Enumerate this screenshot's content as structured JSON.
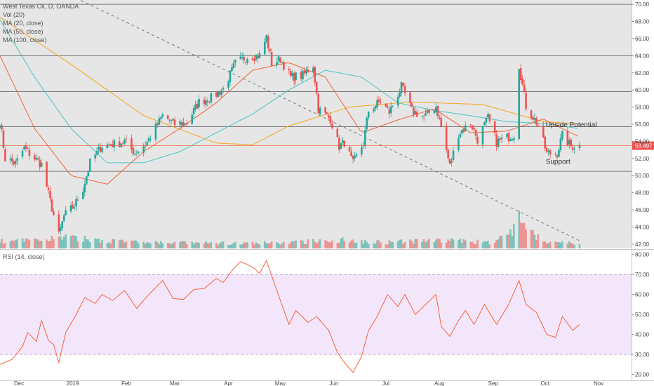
{
  "legend": {
    "symbol": "West Texas Oil, D, OANDA",
    "vol": "Vol (20)",
    "ma20": "MA (20, close)",
    "ma50": "MA (50, close)",
    "ma100": "MA (100, close)",
    "rsi": "RSI (14, close)"
  },
  "colors": {
    "up": "#26a69a",
    "down": "#ef5350",
    "ma20": "#f4643a",
    "ma50": "#4ec4c4",
    "ma100": "#f6a623",
    "rsi": "#f4643a",
    "rsi_band": "#f3e6fb",
    "price_line": "#f4643a",
    "price_tag": "#ef5350"
  },
  "chart_data": {
    "type": "candlestick",
    "price_axis": {
      "min": 41.5,
      "max": 70.5,
      "ticks": [
        "42.00",
        "44.00",
        "46.00",
        "48.00",
        "50.00",
        "52.00",
        "54.00",
        "56.00",
        "58.00",
        "60.00",
        "62.00",
        "64.00",
        "66.00",
        "68.00",
        "70.00"
      ]
    },
    "last_price": "53.497",
    "time_axis": {
      "labels": [
        "Dec",
        "2019",
        "Feb",
        "Mar",
        "Apr",
        "May",
        "Jun",
        "Jul",
        "Aug",
        "Sep",
        "Oct",
        "Nov"
      ]
    },
    "horizontal_levels": [
      70.0,
      64.0,
      59.8,
      55.7,
      50.5
    ],
    "annotations": [
      {
        "text": "Upside Potential",
        "date": "2019-10-01",
        "price": 56.0
      },
      {
        "text": "Support",
        "date": "2019-10-01",
        "price": 51.7
      }
    ],
    "trendline": {
      "from": {
        "date": "2018-11-20",
        "price": 75.0
      },
      "to": {
        "date": "2019-10-22",
        "price": 42.3
      }
    },
    "price_anchors": [
      [
        "2018-11-20",
        56.4
      ],
      [
        "2018-11-23",
        52.0
      ],
      [
        "2018-11-29",
        51.4
      ],
      [
        "2018-12-04",
        53.2
      ],
      [
        "2018-12-10",
        52.0
      ],
      [
        "2018-12-14",
        51.3
      ],
      [
        "2018-12-19",
        47.0
      ],
      [
        "2018-12-24",
        43.0
      ],
      [
        "2018-12-27",
        45.3
      ],
      [
        "2019-01-02",
        46.5
      ],
      [
        "2019-01-07",
        48.5
      ],
      [
        "2019-01-11",
        51.5
      ],
      [
        "2019-01-18",
        53.5
      ],
      [
        "2019-01-25",
        53.7
      ],
      [
        "2019-01-31",
        54.0
      ],
      [
        "2019-02-06",
        52.6
      ],
      [
        "2019-02-13",
        53.9
      ],
      [
        "2019-02-22",
        57.0
      ],
      [
        "2019-03-01",
        56.0
      ],
      [
        "2019-03-08",
        56.2
      ],
      [
        "2019-03-15",
        58.6
      ],
      [
        "2019-03-22",
        59.1
      ],
      [
        "2019-03-29",
        60.1
      ],
      [
        "2019-04-05",
        63.1
      ],
      [
        "2019-04-12",
        63.9
      ],
      [
        "2019-04-19",
        64.0
      ],
      [
        "2019-04-23",
        66.2
      ],
      [
        "2019-04-26",
        63.1
      ],
      [
        "2019-05-01",
        63.6
      ],
      [
        "2019-05-07",
        61.5
      ],
      [
        "2019-05-14",
        61.7
      ],
      [
        "2019-05-20",
        62.9
      ],
      [
        "2019-05-23",
        57.8
      ],
      [
        "2019-05-30",
        56.6
      ],
      [
        "2019-06-04",
        53.4
      ],
      [
        "2019-06-07",
        53.9
      ],
      [
        "2019-06-12",
        51.4
      ],
      [
        "2019-06-18",
        53.8
      ],
      [
        "2019-06-21",
        57.6
      ],
      [
        "2019-06-28",
        58.7
      ],
      [
        "2019-07-03",
        57.4
      ],
      [
        "2019-07-10",
        60.4
      ],
      [
        "2019-07-16",
        57.6
      ],
      [
        "2019-07-23",
        56.8
      ],
      [
        "2019-07-30",
        58.1
      ],
      [
        "2019-08-02",
        55.7
      ],
      [
        "2019-08-07",
        51.1
      ],
      [
        "2019-08-12",
        54.9
      ],
      [
        "2019-08-19",
        56.2
      ],
      [
        "2019-08-23",
        54.2
      ],
      [
        "2019-08-29",
        56.7
      ],
      [
        "2019-09-03",
        53.9
      ],
      [
        "2019-09-13",
        54.8
      ],
      [
        "2019-09-16",
        62.9
      ],
      [
        "2019-09-20",
        58.1
      ],
      [
        "2019-09-27",
        55.9
      ],
      [
        "2019-10-02",
        52.6
      ],
      [
        "2019-10-08",
        52.6
      ],
      [
        "2019-10-11",
        54.7
      ],
      [
        "2019-10-16",
        53.4
      ],
      [
        "2019-10-21",
        53.5
      ]
    ],
    "ma20": [
      [
        "2018-11-20",
        64.0
      ],
      [
        "2018-12-10",
        55.5
      ],
      [
        "2018-12-31",
        50.0
      ],
      [
        "2019-01-21",
        49.0
      ],
      [
        "2019-02-11",
        52.8
      ],
      [
        "2019-03-04",
        55.5
      ],
      [
        "2019-03-25",
        58.5
      ],
      [
        "2019-04-15",
        62.3
      ],
      [
        "2019-05-06",
        63.2
      ],
      [
        "2019-05-27",
        61.5
      ],
      [
        "2019-06-17",
        55.0
      ],
      [
        "2019-07-08",
        56.5
      ],
      [
        "2019-07-29",
        57.8
      ],
      [
        "2019-08-19",
        55.0
      ],
      [
        "2019-09-09",
        55.2
      ],
      [
        "2019-09-30",
        56.6
      ],
      [
        "2019-10-21",
        54.5
      ]
    ],
    "ma50": [
      [
        "2018-11-20",
        68.2
      ],
      [
        "2018-12-10",
        61.5
      ],
      [
        "2018-12-31",
        55.5
      ],
      [
        "2019-01-21",
        51.5
      ],
      [
        "2019-02-11",
        51.5
      ],
      [
        "2019-03-04",
        52.8
      ],
      [
        "2019-03-25",
        55.0
      ],
      [
        "2019-04-15",
        57.2
      ],
      [
        "2019-05-06",
        60.0
      ],
      [
        "2019-05-27",
        62.3
      ],
      [
        "2019-06-17",
        61.5
      ],
      [
        "2019-07-08",
        58.5
      ],
      [
        "2019-07-29",
        57.6
      ],
      [
        "2019-08-19",
        57.0
      ],
      [
        "2019-09-09",
        56.3
      ],
      [
        "2019-09-30",
        56.1
      ],
      [
        "2019-10-21",
        55.5
      ]
    ],
    "ma100": [
      [
        "2018-11-20",
        68.5
      ],
      [
        "2018-12-31",
        63.0
      ],
      [
        "2019-02-11",
        57.0
      ],
      [
        "2019-03-25",
        53.8
      ],
      [
        "2019-04-15",
        53.6
      ],
      [
        "2019-05-06",
        55.8
      ],
      [
        "2019-06-10",
        58.0
      ],
      [
        "2019-07-15",
        58.6
      ],
      [
        "2019-08-26",
        58.3
      ],
      [
        "2019-09-30",
        56.3
      ],
      [
        "2019-10-21",
        56.0
      ]
    ],
    "volume_anchors": [
      [
        "2018-11-20",
        0.28
      ],
      [
        "2018-12-10",
        0.32
      ],
      [
        "2018-12-24",
        0.45
      ],
      [
        "2019-01-07",
        0.38
      ],
      [
        "2019-02-11",
        0.24
      ],
      [
        "2019-03-11",
        0.22
      ],
      [
        "2019-04-08",
        0.2
      ],
      [
        "2019-05-06",
        0.23
      ],
      [
        "2019-06-03",
        0.35
      ],
      [
        "2019-07-01",
        0.25
      ],
      [
        "2019-08-05",
        0.33
      ],
      [
        "2019-09-02",
        0.23
      ],
      [
        "2019-09-16",
        0.95
      ],
      [
        "2019-10-01",
        0.3
      ],
      [
        "2019-10-21",
        0.2
      ]
    ],
    "rsi": {
      "axis": {
        "min": 17.0,
        "max": 82.0,
        "ticks": [
          "20.00",
          "30.00",
          "40.00",
          "50.00",
          "60.00",
          "70.00",
          "80.00"
        ]
      },
      "overbought": 70,
      "oversold": 30,
      "values": [
        [
          "2018-11-20",
          25.0
        ],
        [
          "2018-11-27",
          27.5
        ],
        [
          "2018-12-03",
          34.0
        ],
        [
          "2018-12-06",
          41.0
        ],
        [
          "2018-12-11",
          36.5
        ],
        [
          "2018-12-14",
          47.0
        ],
        [
          "2018-12-18",
          37.0
        ],
        [
          "2018-12-21",
          35.0
        ],
        [
          "2018-12-24",
          26.0
        ],
        [
          "2018-12-28",
          41.0
        ],
        [
          "2019-01-03",
          50.0
        ],
        [
          "2019-01-08",
          58.5
        ],
        [
          "2019-01-14",
          55.5
        ],
        [
          "2019-01-18",
          60.0
        ],
        [
          "2019-01-24",
          57.0
        ],
        [
          "2019-01-31",
          62.0
        ],
        [
          "2019-02-07",
          53.0
        ],
        [
          "2019-02-14",
          60.0
        ],
        [
          "2019-02-22",
          67.0
        ],
        [
          "2019-02-28",
          58.0
        ],
        [
          "2019-03-06",
          57.5
        ],
        [
          "2019-03-12",
          62.5
        ],
        [
          "2019-03-18",
          63.0
        ],
        [
          "2019-03-25",
          68.0
        ],
        [
          "2019-03-29",
          66.0
        ],
        [
          "2019-04-04",
          73.0
        ],
        [
          "2019-04-08",
          76.5
        ],
        [
          "2019-04-12",
          75.0
        ],
        [
          "2019-04-16",
          73.0
        ],
        [
          "2019-04-19",
          70.5
        ],
        [
          "2019-04-23",
          77.0
        ],
        [
          "2019-04-29",
          62.0
        ],
        [
          "2019-05-06",
          45.0
        ],
        [
          "2019-05-10",
          52.0
        ],
        [
          "2019-05-17",
          46.0
        ],
        [
          "2019-05-22",
          49.0
        ],
        [
          "2019-05-29",
          42.0
        ],
        [
          "2019-06-03",
          31.0
        ],
        [
          "2019-06-06",
          27.0
        ],
        [
          "2019-06-12",
          21.0
        ],
        [
          "2019-06-17",
          29.0
        ],
        [
          "2019-06-21",
          42.0
        ],
        [
          "2019-06-26",
          49.0
        ],
        [
          "2019-07-02",
          60.0
        ],
        [
          "2019-07-08",
          54.0
        ],
        [
          "2019-07-12",
          60.0
        ],
        [
          "2019-07-18",
          50.0
        ],
        [
          "2019-07-24",
          55.0
        ],
        [
          "2019-07-30",
          60.0
        ],
        [
          "2019-08-02",
          44.0
        ],
        [
          "2019-08-07",
          39.0
        ],
        [
          "2019-08-12",
          47.0
        ],
        [
          "2019-08-16",
          52.0
        ],
        [
          "2019-08-21",
          45.0
        ],
        [
          "2019-08-27",
          55.0
        ],
        [
          "2019-09-03",
          45.0
        ],
        [
          "2019-09-10",
          55.0
        ],
        [
          "2019-09-16",
          67.0
        ],
        [
          "2019-09-20",
          55.0
        ],
        [
          "2019-09-26",
          51.0
        ],
        [
          "2019-10-02",
          40.0
        ],
        [
          "2019-10-07",
          38.5
        ],
        [
          "2019-10-11",
          49.0
        ],
        [
          "2019-10-17",
          42.0
        ],
        [
          "2019-10-21",
          45.0
        ]
      ]
    }
  }
}
